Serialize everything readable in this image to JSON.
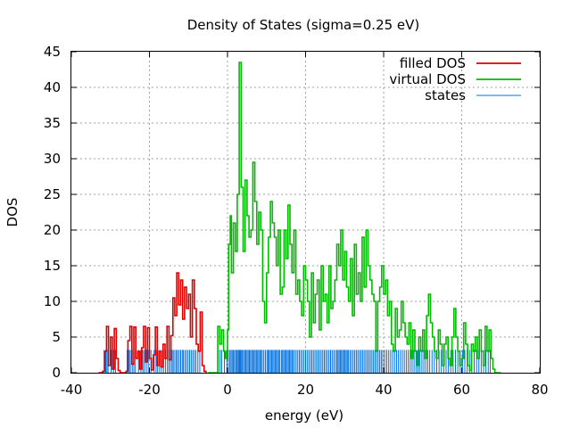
{
  "chart_data": {
    "type": "line",
    "title": "Density of States (sigma=0.25 eV)",
    "xlabel": "energy (eV)",
    "ylabel": "DOS",
    "xlim": [
      -40,
      80
    ],
    "ylim": [
      0,
      45
    ],
    "xticks": [
      -40,
      -20,
      0,
      20,
      40,
      60,
      80
    ],
    "yticks": [
      0,
      5,
      10,
      15,
      20,
      25,
      30,
      35,
      40,
      45
    ],
    "xtick_labels": [
      "-40",
      "-20",
      "0",
      "20",
      "40",
      "60",
      "80"
    ],
    "ytick_labels": [
      "0",
      "5",
      "10",
      "15",
      "20",
      "25",
      "30",
      "35",
      "40",
      "45"
    ],
    "grid": true,
    "legend_position": "top-right",
    "series": [
      {
        "name": "filled DOS",
        "color": "#dd0000",
        "style": "line",
        "points": [
          [
            -33,
            0
          ],
          [
            -32,
            0.2
          ],
          [
            -31.5,
            3
          ],
          [
            -31,
            6.5
          ],
          [
            -30.5,
            1
          ],
          [
            -30,
            5
          ],
          [
            -29.5,
            0.5
          ],
          [
            -29,
            6.2
          ],
          [
            -28.5,
            2
          ],
          [
            -28,
            0.3
          ],
          [
            -27.5,
            0
          ],
          [
            -27,
            0
          ],
          [
            -26,
            0.2
          ],
          [
            -25.5,
            4.5
          ],
          [
            -25,
            6.5
          ],
          [
            -24.5,
            1.2
          ],
          [
            -24,
            6.4
          ],
          [
            -23.5,
            2
          ],
          [
            -23,
            3
          ],
          [
            -22.5,
            0.5
          ],
          [
            -22,
            3.5
          ],
          [
            -21.5,
            6.5
          ],
          [
            -21,
            1.5
          ],
          [
            -20.5,
            6.3
          ],
          [
            -20,
            2
          ],
          [
            -19.5,
            0.4
          ],
          [
            -19,
            2.5
          ],
          [
            -18.5,
            6.4
          ],
          [
            -18,
            1
          ],
          [
            -17.5,
            3
          ],
          [
            -17,
            0.8
          ],
          [
            -16.5,
            4
          ],
          [
            -16,
            2
          ],
          [
            -15.5,
            6.5
          ],
          [
            -15,
            1.8
          ],
          [
            -14.5,
            5.2
          ],
          [
            -14,
            10.5
          ],
          [
            -13.5,
            8
          ],
          [
            -13,
            14
          ],
          [
            -12.5,
            9.5
          ],
          [
            -12,
            13
          ],
          [
            -11.5,
            7.5
          ],
          [
            -11,
            12
          ],
          [
            -10.5,
            9
          ],
          [
            -10,
            11
          ],
          [
            -9.5,
            5
          ],
          [
            -9,
            13
          ],
          [
            -8.5,
            9
          ],
          [
            -8,
            4
          ],
          [
            -7.5,
            3
          ],
          [
            -7,
            8.5
          ],
          [
            -6.5,
            1
          ],
          [
            -6,
            0.2
          ],
          [
            -5.5,
            0
          ]
        ]
      },
      {
        "name": "virtual DOS",
        "color": "#00bb00",
        "style": "line",
        "points": [
          [
            -5,
            0
          ],
          [
            -3,
            0
          ],
          [
            -2.5,
            6.5
          ],
          [
            -2,
            4
          ],
          [
            -1.5,
            6
          ],
          [
            -1,
            3
          ],
          [
            -0.5,
            2
          ],
          [
            0,
            6
          ],
          [
            0.3,
            18
          ],
          [
            0.7,
            22
          ],
          [
            1,
            14
          ],
          [
            1.5,
            21
          ],
          [
            2,
            17
          ],
          [
            2.5,
            25
          ],
          [
            3,
            43.5
          ],
          [
            3.5,
            26
          ],
          [
            4,
            17
          ],
          [
            4.5,
            27
          ],
          [
            5,
            22
          ],
          [
            5.5,
            19
          ],
          [
            6,
            20
          ],
          [
            6.5,
            29.5
          ],
          [
            7,
            24
          ],
          [
            7.5,
            18
          ],
          [
            8,
            22.5
          ],
          [
            8.5,
            20
          ],
          [
            9,
            10
          ],
          [
            9.5,
            7
          ],
          [
            10,
            14
          ],
          [
            10.5,
            19
          ],
          [
            11,
            24
          ],
          [
            11.5,
            21
          ],
          [
            12,
            19
          ],
          [
            12.5,
            15
          ],
          [
            13,
            20
          ],
          [
            13.5,
            11
          ],
          [
            14,
            12
          ],
          [
            14.5,
            20
          ],
          [
            15,
            16
          ],
          [
            15.5,
            23.5
          ],
          [
            16,
            18
          ],
          [
            16.5,
            14
          ],
          [
            17,
            20
          ],
          [
            17.5,
            11
          ],
          [
            18,
            13
          ],
          [
            18.5,
            10
          ],
          [
            19,
            8
          ],
          [
            19.5,
            15
          ],
          [
            20,
            13
          ],
          [
            20.5,
            10
          ],
          [
            21,
            5
          ],
          [
            21.5,
            14
          ],
          [
            22,
            7
          ],
          [
            22.5,
            11
          ],
          [
            23,
            13
          ],
          [
            23.5,
            6
          ],
          [
            24,
            15
          ],
          [
            24.5,
            10
          ],
          [
            25,
            11
          ],
          [
            25.5,
            7
          ],
          [
            26,
            15
          ],
          [
            26.5,
            9
          ],
          [
            27,
            10
          ],
          [
            27.5,
            13
          ],
          [
            28,
            18
          ],
          [
            28.5,
            15
          ],
          [
            29,
            20
          ],
          [
            29.5,
            13
          ],
          [
            30,
            17
          ],
          [
            30.5,
            12
          ],
          [
            31,
            10
          ],
          [
            31.5,
            16
          ],
          [
            32,
            8
          ],
          [
            32.5,
            18
          ],
          [
            33,
            11
          ],
          [
            33.5,
            14
          ],
          [
            34,
            10
          ],
          [
            34.5,
            19
          ],
          [
            35,
            12
          ],
          [
            35.5,
            20
          ],
          [
            36,
            15
          ],
          [
            36.5,
            13
          ],
          [
            37,
            11
          ],
          [
            37.5,
            10
          ],
          [
            38,
            3
          ],
          [
            38.5,
            10
          ],
          [
            39,
            12
          ],
          [
            39.5,
            15
          ],
          [
            40,
            11
          ],
          [
            40.5,
            13
          ],
          [
            41,
            8
          ],
          [
            41.5,
            10
          ],
          [
            42,
            4
          ],
          [
            42.5,
            3
          ],
          [
            43,
            9
          ],
          [
            43.5,
            5
          ],
          [
            44,
            6
          ],
          [
            44.5,
            10
          ],
          [
            45,
            7
          ],
          [
            45.5,
            5
          ],
          [
            46,
            4
          ],
          [
            46.5,
            7
          ],
          [
            47,
            2
          ],
          [
            47.5,
            6
          ],
          [
            48,
            3
          ],
          [
            48.5,
            1
          ],
          [
            49,
            5
          ],
          [
            49.5,
            3
          ],
          [
            50,
            6
          ],
          [
            50.5,
            2
          ],
          [
            51,
            8
          ],
          [
            51.5,
            11
          ],
          [
            52,
            7
          ],
          [
            52.5,
            5
          ],
          [
            53,
            3
          ],
          [
            53.5,
            2
          ],
          [
            54,
            6
          ],
          [
            54.5,
            4
          ],
          [
            55,
            1
          ],
          [
            55.5,
            4
          ],
          [
            56,
            5
          ],
          [
            56.5,
            2
          ],
          [
            57,
            1
          ],
          [
            57.5,
            5
          ],
          [
            58,
            9
          ],
          [
            58.5,
            5
          ],
          [
            59,
            3
          ],
          [
            59.5,
            1
          ],
          [
            60,
            2
          ],
          [
            60.5,
            7
          ],
          [
            61,
            4
          ],
          [
            61.5,
            1
          ],
          [
            62,
            0.3
          ],
          [
            62.5,
            4
          ],
          [
            63,
            3
          ],
          [
            63.5,
            5
          ],
          [
            64,
            2
          ],
          [
            64.5,
            6
          ],
          [
            65,
            3
          ],
          [
            65.5,
            1
          ],
          [
            66,
            6.5
          ],
          [
            66.5,
            3
          ],
          [
            67,
            6
          ],
          [
            67.5,
            2
          ],
          [
            68,
            0.5
          ],
          [
            68.5,
            0
          ],
          [
            70,
            0
          ]
        ]
      },
      {
        "name": "states",
        "color": "#0070e0",
        "style": "impulses",
        "height": 3.2,
        "energies": [
          -31.6,
          -31.2,
          -30.9,
          -30.6,
          -29.8,
          -29.2,
          -28.7,
          -25.7,
          -25.2,
          -24.9,
          -24.4,
          -24,
          -23.6,
          -22.8,
          -22.2,
          -21.7,
          -21.3,
          -20.8,
          -20.3,
          -19.6,
          -18.8,
          -18.3,
          -17.9,
          -17.4,
          -16.9,
          -16.4,
          -15.9,
          -15.4,
          -15,
          -14.6,
          -14.2,
          -13.9,
          -13.5,
          -13.1,
          -12.8,
          -12.4,
          -12,
          -11.6,
          -11.3,
          -10.9,
          -10.5,
          -10.1,
          -9.7,
          -9.3,
          -8.9,
          -8.5,
          -8.1,
          -7.6,
          -7.1,
          -2.4,
          -1.9,
          -1.5,
          -0.8,
          -0.2,
          0.2,
          0.6,
          0.9,
          1.2,
          1.5,
          1.8,
          2.1,
          2.4,
          2.7,
          2.9,
          3.1,
          3.3,
          3.5,
          3.8,
          4.1,
          4.4,
          4.7,
          5,
          5.3,
          5.6,
          5.9,
          6.2,
          6.5,
          6.8,
          7.1,
          7.4,
          7.7,
          8,
          8.3,
          8.6,
          8.9,
          9.3,
          9.7,
          10.1,
          10.4,
          10.7,
          11,
          11.3,
          11.6,
          11.9,
          12.2,
          12.5,
          12.8,
          13.1,
          13.4,
          13.8,
          14.1,
          14.4,
          14.7,
          15,
          15.3,
          15.6,
          15.9,
          16.2,
          16.5,
          16.8,
          17.2,
          17.6,
          18,
          18.4,
          18.8,
          19.2,
          19.6,
          20,
          20.4,
          20.8,
          21.2,
          21.6,
          22,
          22.4,
          22.8,
          23.2,
          23.6,
          24,
          24.4,
          24.8,
          25.2,
          25.6,
          26,
          26.4,
          26.8,
          27.2,
          27.6,
          28,
          28.3,
          28.6,
          28.9,
          29.2,
          29.5,
          29.8,
          30.1,
          30.4,
          30.7,
          31,
          31.4,
          31.8,
          32.2,
          32.6,
          33,
          33.4,
          33.8,
          34.2,
          34.6,
          35,
          35.4,
          35.8,
          36.2,
          36.6,
          37,
          37.4,
          37.8,
          38.2,
          38.6,
          39,
          39.4,
          39.8,
          40.3,
          40.8,
          41.3,
          41.8,
          42.3,
          42.8,
          43.3,
          43.8,
          44.3,
          44.8,
          45.3,
          45.8,
          46.3,
          46.8,
          47.3,
          47.8,
          48.3,
          48.8,
          49.3,
          49.8,
          50.3,
          50.8,
          51.3,
          51.8,
          52.4,
          53,
          53.6,
          54.2,
          54.8,
          55.4,
          56,
          56.6,
          57.2,
          57.8,
          58.4,
          59,
          59.6,
          60.2,
          60.8,
          61.4,
          62,
          62.6,
          63.2,
          63.8,
          64.4,
          65,
          65.6,
          66.2,
          66.8,
          67.3
        ]
      }
    ]
  }
}
